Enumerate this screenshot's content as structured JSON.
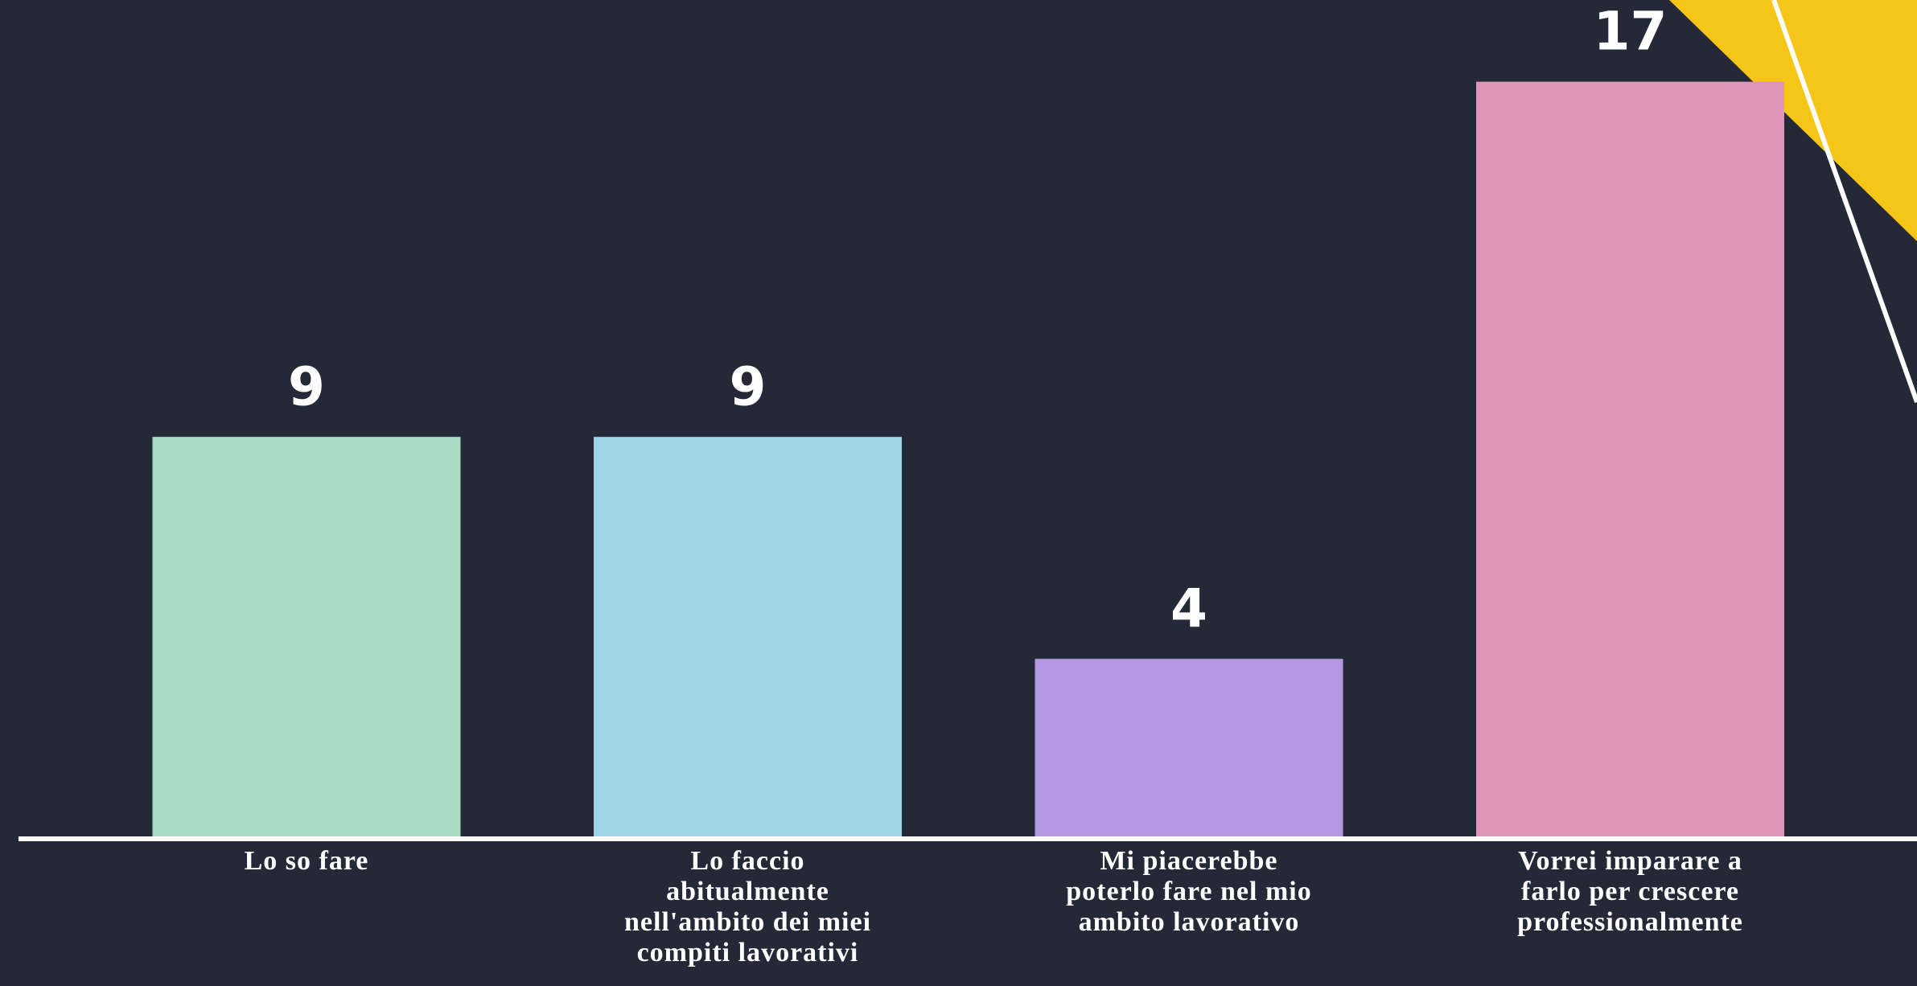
{
  "chart_data": {
    "type": "bar",
    "categories": [
      "Lo so fare",
      "Lo faccio\nabitualmente\nnell'ambito dei miei\ncompiti lavorativi",
      "Mi piacerebbe\npoterlo fare nel mio\nambito lavorativo",
      "Vorrei imparare a\nfarlo per crescere\nprofessionalmente"
    ],
    "values": [
      9,
      9,
      4,
      17
    ],
    "colors": [
      "#a6dcc4",
      "#9fd3e6",
      "#b497e3",
      "#de95b8"
    ]
  }
}
